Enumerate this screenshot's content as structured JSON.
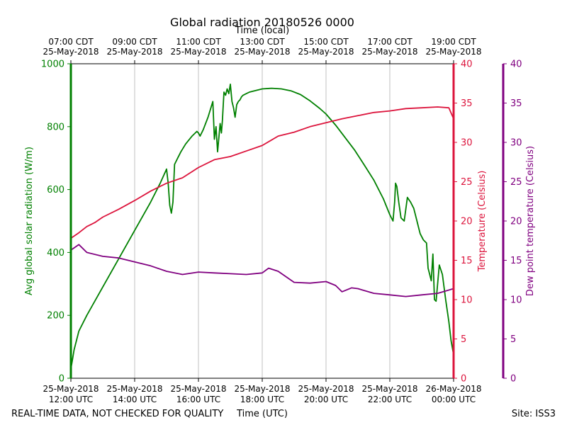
{
  "chart_data": {
    "type": "line",
    "title": "Global radiation 20180526 0000",
    "x_axis_bottom": {
      "label": "Time (UTC)",
      "range_hours_utc": [
        12,
        24
      ],
      "ticks": [
        {
          "hour": 12,
          "line1": "25-May-2018",
          "line2": "12:00 UTC"
        },
        {
          "hour": 14,
          "line1": "25-May-2018",
          "line2": "14:00 UTC"
        },
        {
          "hour": 16,
          "line1": "25-May-2018",
          "line2": "16:00 UTC"
        },
        {
          "hour": 18,
          "line1": "25-May-2018",
          "line2": "18:00 UTC"
        },
        {
          "hour": 20,
          "line1": "25-May-2018",
          "line2": "20:00 UTC"
        },
        {
          "hour": 22,
          "line1": "25-May-2018",
          "line2": "22:00 UTC"
        },
        {
          "hour": 24,
          "line1": "26-May-2018",
          "line2": "00:00 UTC"
        }
      ]
    },
    "x_axis_top": {
      "label": "Time (local)",
      "ticks": [
        {
          "hour": 12,
          "line1": "07:00 CDT",
          "line2": "25-May-2018"
        },
        {
          "hour": 14,
          "line1": "09:00 CDT",
          "line2": "25-May-2018"
        },
        {
          "hour": 16,
          "line1": "11:00 CDT",
          "line2": "25-May-2018"
        },
        {
          "hour": 18,
          "line1": "13:00 CDT",
          "line2": "25-May-2018"
        },
        {
          "hour": 20,
          "line1": "15:00 CDT",
          "line2": "25-May-2018"
        },
        {
          "hour": 22,
          "line1": "17:00 CDT",
          "line2": "25-May-2018"
        },
        {
          "hour": 24,
          "line1": "19:00 CDT",
          "line2": "25-May-2018"
        }
      ]
    },
    "y_axes": [
      {
        "id": "rad",
        "label": "Avg global solar radiation (W/m)",
        "ylim": [
          0,
          1000
        ],
        "ticks": [
          "0",
          "200",
          "400",
          "600",
          "800",
          "1000"
        ],
        "color": "#008000"
      },
      {
        "id": "temp",
        "label": "Temperature (Celsius)",
        "ylim": [
          0,
          40
        ],
        "ticks": [
          "0",
          "5",
          "10",
          "15",
          "20",
          "25",
          "30",
          "35",
          "40"
        ],
        "color": "#dc143c"
      },
      {
        "id": "dew",
        "label": "Dew point temperature (Celsius)",
        "ylim": [
          0,
          40
        ],
        "ticks": [
          "0",
          "5",
          "10",
          "15",
          "20",
          "25",
          "30",
          "35",
          "40"
        ],
        "color": "#800080"
      }
    ],
    "series": [
      {
        "name": "Global solar radiation",
        "axis": "rad",
        "color": "#008000",
        "x": [
          12.0,
          12.05,
          12.1,
          12.25,
          12.5,
          13.0,
          13.5,
          14.0,
          14.5,
          14.8,
          15.0,
          15.05,
          15.1,
          15.15,
          15.2,
          15.25,
          15.3,
          15.35,
          15.45,
          15.6,
          15.8,
          15.95,
          16.0,
          16.05,
          16.15,
          16.3,
          16.45,
          16.5,
          16.55,
          16.6,
          16.68,
          16.72,
          16.75,
          16.8,
          16.85,
          16.9,
          16.95,
          17.0,
          17.05,
          17.1,
          17.15,
          17.2,
          17.25,
          17.3,
          17.35,
          17.4,
          17.5,
          17.6,
          17.8,
          18.0,
          18.3,
          18.6,
          18.9,
          19.2,
          19.5,
          19.8,
          20.0,
          20.3,
          20.6,
          20.9,
          21.2,
          21.5,
          21.8,
          22.0,
          22.1,
          22.15,
          22.18,
          22.22,
          22.28,
          22.35,
          22.45,
          22.55,
          22.65,
          22.75,
          22.85,
          22.9,
          22.95,
          23.0,
          23.05,
          23.15,
          23.2,
          23.25,
          23.3,
          23.35,
          23.4,
          23.45,
          23.55,
          23.65,
          23.75,
          23.85,
          23.92,
          24.0
        ],
        "values": [
          30,
          60,
          90,
          150,
          200,
          290,
          380,
          470,
          560,
          620,
          665,
          620,
          550,
          525,
          560,
          680,
          690,
          700,
          720,
          745,
          770,
          785,
          780,
          770,
          790,
          830,
          880,
          760,
          800,
          720,
          810,
          780,
          820,
          910,
          900,
          920,
          905,
          935,
          880,
          860,
          830,
          870,
          880,
          885,
          895,
          900,
          905,
          910,
          915,
          920,
          922,
          920,
          914,
          902,
          882,
          858,
          840,
          805,
          765,
          725,
          678,
          630,
          570,
          520,
          500,
          560,
          620,
          610,
          560,
          510,
          500,
          575,
          560,
          540,
          500,
          480,
          460,
          450,
          440,
          430,
          350,
          330,
          310,
          395,
          250,
          245,
          360,
          330,
          250,
          180,
          120,
          75
        ]
      },
      {
        "name": "Temperature",
        "axis": "temp",
        "color": "#dc143c",
        "x": [
          12.0,
          12.25,
          12.5,
          12.75,
          13.0,
          13.5,
          14.0,
          14.5,
          15.0,
          15.5,
          16.0,
          16.5,
          17.0,
          17.5,
          18.0,
          18.5,
          19.0,
          19.5,
          20.0,
          20.5,
          21.0,
          21.5,
          22.0,
          22.5,
          23.0,
          23.5,
          23.85,
          24.0
        ],
        "values": [
          17.8,
          18.5,
          19.3,
          19.8,
          20.5,
          21.5,
          22.6,
          23.8,
          24.8,
          25.5,
          26.8,
          27.8,
          28.2,
          28.9,
          29.6,
          30.8,
          31.3,
          32.0,
          32.5,
          33.0,
          33.4,
          33.8,
          34.0,
          34.3,
          34.4,
          34.5,
          34.4,
          33.0
        ]
      },
      {
        "name": "Dew point temperature",
        "axis": "dew",
        "color": "#800080",
        "x": [
          12.0,
          12.25,
          12.5,
          13.0,
          13.5,
          14.0,
          14.5,
          15.0,
          15.5,
          16.0,
          16.5,
          17.0,
          17.5,
          18.0,
          18.2,
          18.5,
          19.0,
          19.5,
          20.0,
          20.3,
          20.5,
          20.8,
          21.0,
          21.5,
          22.0,
          22.5,
          23.0,
          23.5,
          24.0
        ],
        "values": [
          16.3,
          17.0,
          16.0,
          15.5,
          15.3,
          14.8,
          14.3,
          13.6,
          13.2,
          13.5,
          13.4,
          13.3,
          13.2,
          13.4,
          14.0,
          13.6,
          12.2,
          12.1,
          12.3,
          11.8,
          11.0,
          11.5,
          11.4,
          10.8,
          10.6,
          10.4,
          10.6,
          10.8,
          11.4
        ]
      }
    ],
    "grid": "vertical",
    "footer_left": "REAL-TIME DATA, NOT CHECKED FOR QUALITY",
    "footer_right": "Site: ISS3"
  }
}
